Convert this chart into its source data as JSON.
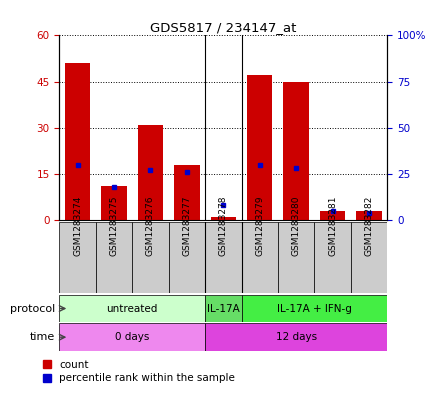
{
  "title": "GDS5817 / 234147_at",
  "samples": [
    "GSM1283274",
    "GSM1283275",
    "GSM1283276",
    "GSM1283277",
    "GSM1283278",
    "GSM1283279",
    "GSM1283280",
    "GSM1283281",
    "GSM1283282"
  ],
  "counts": [
    51,
    11,
    31,
    18,
    1,
    47,
    45,
    3,
    3
  ],
  "percentile_ranks": [
    30,
    18,
    27,
    26,
    8,
    30,
    28,
    5,
    4
  ],
  "left_ylim": [
    0,
    60
  ],
  "right_ylim": [
    0,
    100
  ],
  "left_yticks": [
    0,
    15,
    30,
    45,
    60
  ],
  "right_yticks": [
    0,
    25,
    50,
    75,
    100
  ],
  "left_yticklabels": [
    "0",
    "15",
    "30",
    "45",
    "60"
  ],
  "right_yticklabels": [
    "0",
    "25",
    "50",
    "75",
    "100%"
  ],
  "bar_color": "#cc0000",
  "dot_color": "#0000cc",
  "protocol_groups": [
    {
      "label": "untreated",
      "start": 0,
      "end": 4,
      "color": "#ccffcc"
    },
    {
      "label": "IL-17A",
      "start": 4,
      "end": 5,
      "color": "#66dd66"
    },
    {
      "label": "IL-17A + IFN-g",
      "start": 5,
      "end": 9,
      "color": "#44ee44"
    }
  ],
  "time_groups": [
    {
      "label": "0 days",
      "start": 0,
      "end": 4,
      "color": "#ee88ee"
    },
    {
      "label": "12 days",
      "start": 4,
      "end": 9,
      "color": "#dd44dd"
    }
  ],
  "protocol_label": "protocol",
  "time_label": "time",
  "legend_count_label": "count",
  "legend_percentile_label": "percentile rank within the sample",
  "background_color": "#ffffff",
  "plot_bg_color": "#ffffff",
  "grid_color": "#000000",
  "left_tick_color": "#cc0000",
  "right_tick_color": "#0000cc",
  "sample_box_color": "#cccccc",
  "arrow_color": "#444444"
}
